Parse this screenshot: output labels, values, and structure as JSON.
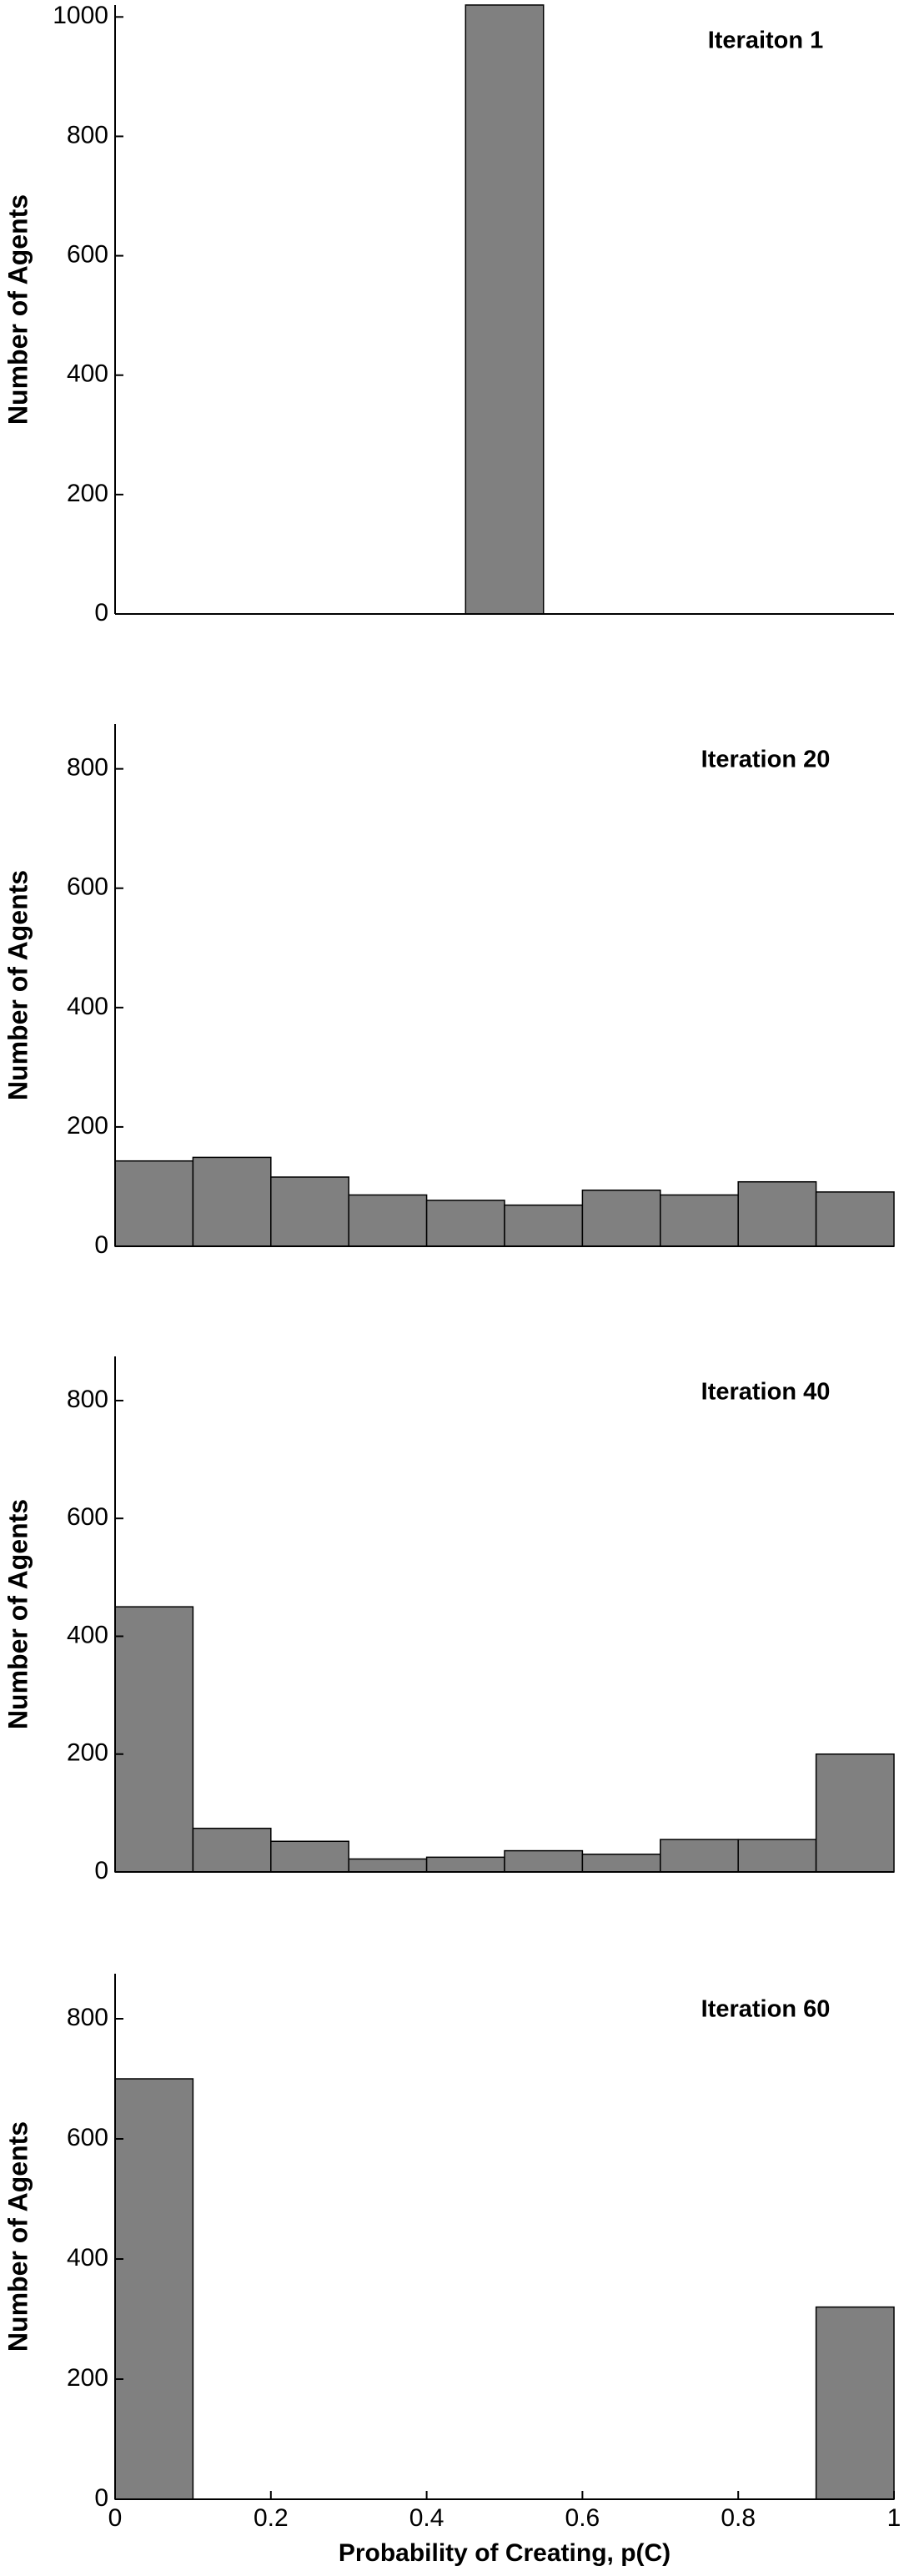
{
  "chart_data": [
    {
      "type": "histogram",
      "title": "Iteraiton 1",
      "ylabel": "Number of Agents",
      "bins": [
        0.45,
        0.55
      ],
      "values": [
        1020
      ],
      "color": "#808080",
      "xlim": [
        0,
        1
      ],
      "ylim": [
        0,
        1020
      ],
      "yticks": [
        0,
        200,
        400,
        600,
        800,
        1000
      ]
    },
    {
      "type": "histogram",
      "title": "Iteration 20",
      "ylabel": "Number of Agents",
      "bins": [
        0,
        0.1,
        0.2,
        0.3,
        0.4,
        0.5,
        0.6,
        0.7,
        0.8,
        0.9,
        1
      ],
      "values": [
        143,
        149,
        116,
        86,
        77,
        69,
        94,
        86,
        108,
        91
      ],
      "color": "#808080",
      "xlim": [
        0,
        1
      ],
      "ylim": [
        0,
        875
      ],
      "yticks": [
        0,
        200,
        400,
        600,
        800
      ]
    },
    {
      "type": "histogram",
      "title": "Iteration 40",
      "ylabel": "Number of Agents",
      "bins": [
        0,
        0.1,
        0.2,
        0.3,
        0.4,
        0.5,
        0.6,
        0.7,
        0.8,
        0.9,
        1
      ],
      "values": [
        450,
        74,
        52,
        22,
        25,
        36,
        30,
        55,
        55,
        200
      ],
      "color": "#808080",
      "xlim": [
        0,
        1
      ],
      "ylim": [
        0,
        875
      ],
      "yticks": [
        0,
        200,
        400,
        600,
        800
      ]
    },
    {
      "type": "histogram",
      "title": "Iteration 60",
      "ylabel": "Number of Agents",
      "xlabel": "Probability of Creating, p(C)",
      "bins": [
        0,
        0.1,
        0.2,
        0.3,
        0.4,
        0.5,
        0.6,
        0.7,
        0.8,
        0.9,
        1
      ],
      "values": [
        700,
        0,
        0,
        0,
        0,
        0,
        0,
        0,
        0,
        320
      ],
      "color": "#808080",
      "xlim": [
        0,
        1
      ],
      "ylim": [
        0,
        875
      ],
      "yticks": [
        0,
        200,
        400,
        600,
        800
      ],
      "xticks": [
        0,
        0.2,
        0.4,
        0.6,
        0.8,
        1
      ]
    }
  ]
}
